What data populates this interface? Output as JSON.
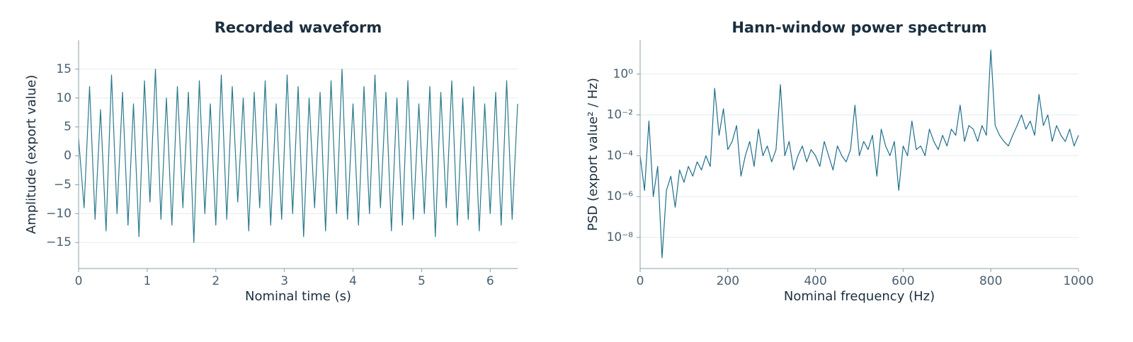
{
  "chart_data": [
    {
      "type": "line",
      "title": "Recorded waveform",
      "xlabel": "Nominal time (s)",
      "ylabel": "Amplitude (export value)",
      "x": [
        0,
        0.08,
        0.16,
        0.24,
        0.32,
        0.4,
        0.48,
        0.56,
        0.64,
        0.72,
        0.8,
        0.88,
        0.96,
        1.04,
        1.12,
        1.2,
        1.28,
        1.36,
        1.44,
        1.52,
        1.6,
        1.68,
        1.76,
        1.84,
        1.92,
        2,
        2.08,
        2.16,
        2.24,
        2.32,
        2.4,
        2.48,
        2.56,
        2.64,
        2.72,
        2.8,
        2.88,
        2.96,
        3.04,
        3.12,
        3.2,
        3.28,
        3.36,
        3.44,
        3.52,
        3.6,
        3.68,
        3.76,
        3.84,
        3.92,
        4,
        4.08,
        4.16,
        4.24,
        4.32,
        4.4,
        4.48,
        4.56,
        4.64,
        4.72,
        4.8,
        4.88,
        4.96,
        5.04,
        5.12,
        5.2,
        5.28,
        5.36,
        5.44,
        5.52,
        5.6,
        5.68,
        5.76,
        5.84,
        5.92,
        6,
        6.08,
        6.16,
        6.24,
        6.32,
        6.4
      ],
      "values": [
        3,
        -9,
        12,
        -11,
        8,
        -13,
        14,
        -10,
        11,
        -12,
        9,
        -14,
        13,
        -8,
        15,
        -11,
        10,
        -12,
        12,
        -9,
        11,
        -15,
        13,
        -10,
        9,
        -12,
        14,
        -11,
        12,
        -8,
        10,
        -13,
        11,
        -9,
        13,
        -12,
        9,
        -11,
        14,
        -10,
        12,
        -14,
        10,
        -9,
        11,
        -13,
        13,
        -10,
        15,
        -11,
        9,
        -12,
        12,
        -10,
        14,
        -9,
        11,
        -13,
        10,
        -12,
        13,
        -11,
        9,
        -10,
        12,
        -14,
        11,
        -9,
        13,
        -12,
        10,
        -11,
        12,
        -13,
        9,
        -10,
        11,
        -12,
        13,
        -11,
        9
      ],
      "color": "#2a7a8c",
      "xlim": [
        0,
        6.4
      ],
      "ylim": [
        -19.5,
        20
      ],
      "xticks": [
        0,
        1,
        2,
        3,
        4,
        5,
        6
      ],
      "yticks": [
        {
          "value": -15,
          "label": "−15"
        },
        {
          "value": -10,
          "label": "−10"
        },
        {
          "value": -5,
          "label": "−5"
        },
        0,
        5,
        10,
        15
      ],
      "grid": true,
      "log_y": false
    },
    {
      "type": "line",
      "title": "Hann-window power spectrum",
      "xlabel": "Nominal frequency (Hz)",
      "ylabel": "PSD (export value² / Hz)",
      "x": [
        0,
        10,
        20,
        30,
        40,
        50,
        60,
        70,
        80,
        90,
        100,
        110,
        120,
        130,
        140,
        150,
        160,
        170,
        180,
        190,
        200,
        210,
        220,
        230,
        240,
        250,
        260,
        270,
        280,
        290,
        300,
        310,
        320,
        330,
        340,
        350,
        360,
        370,
        380,
        390,
        400,
        410,
        420,
        430,
        440,
        450,
        460,
        470,
        480,
        490,
        500,
        510,
        520,
        530,
        540,
        550,
        560,
        570,
        580,
        590,
        600,
        610,
        620,
        630,
        640,
        650,
        660,
        670,
        680,
        690,
        700,
        710,
        720,
        730,
        740,
        750,
        760,
        770,
        780,
        790,
        800,
        810,
        820,
        830,
        840,
        850,
        860,
        870,
        880,
        890,
        900,
        910,
        920,
        930,
        940,
        950,
        960,
        970,
        980,
        990,
        1000
      ],
      "values": [
        0.0001,
        2e-06,
        0.005,
        1e-06,
        3e-05,
        1e-09,
        2e-06,
        1e-05,
        3e-07,
        2e-05,
        5e-06,
        3e-05,
        1e-05,
        5e-05,
        2e-05,
        0.0001,
        3e-05,
        0.2,
        0.001,
        0.02,
        0.0002,
        0.0005,
        0.003,
        1e-05,
        0.0001,
        0.0005,
        3e-05,
        0.002,
        0.0001,
        0.0003,
        5e-05,
        0.0002,
        0.3,
        0.0001,
        0.0005,
        2e-05,
        0.0001,
        0.0003,
        5e-05,
        0.0002,
        0.0001,
        3e-05,
        0.0005,
        0.0001,
        2e-05,
        0.0003,
        0.0001,
        5e-05,
        0.0002,
        0.03,
        0.0001,
        0.0005,
        0.0002,
        0.001,
        1e-05,
        0.002,
        0.0003,
        0.0001,
        0.0005,
        2e-06,
        0.0003,
        0.0001,
        0.005,
        0.0002,
        0.0003,
        0.0001,
        0.002,
        0.0005,
        0.0002,
        0.001,
        0.0003,
        0.002,
        0.001,
        0.03,
        0.0005,
        0.003,
        0.002,
        0.0005,
        0.003,
        0.001,
        15,
        0.003,
        0.001,
        0.0005,
        0.0003,
        0.001,
        0.003,
        0.01,
        0.002,
        0.005,
        0.001,
        0.1,
        0.003,
        0.01,
        0.0005,
        0.003,
        0.001,
        0.0005,
        0.002,
        0.0003,
        0.001
      ],
      "color": "#1f6e8c",
      "xlim": [
        0,
        1000
      ],
      "ylim": [
        3e-10,
        45
      ],
      "xticks": [
        0,
        200,
        400,
        600,
        800,
        1000
      ],
      "yticks": [
        {
          "value": 1e-08,
          "label": "10⁻⁸"
        },
        {
          "value": 1e-06,
          "label": "10⁻⁶"
        },
        {
          "value": 0.0001,
          "label": "10⁻⁴"
        },
        {
          "value": 0.01,
          "label": "10⁻²"
        },
        {
          "value": 1,
          "label": "10⁰"
        }
      ],
      "grid": true,
      "log_y": true
    }
  ]
}
